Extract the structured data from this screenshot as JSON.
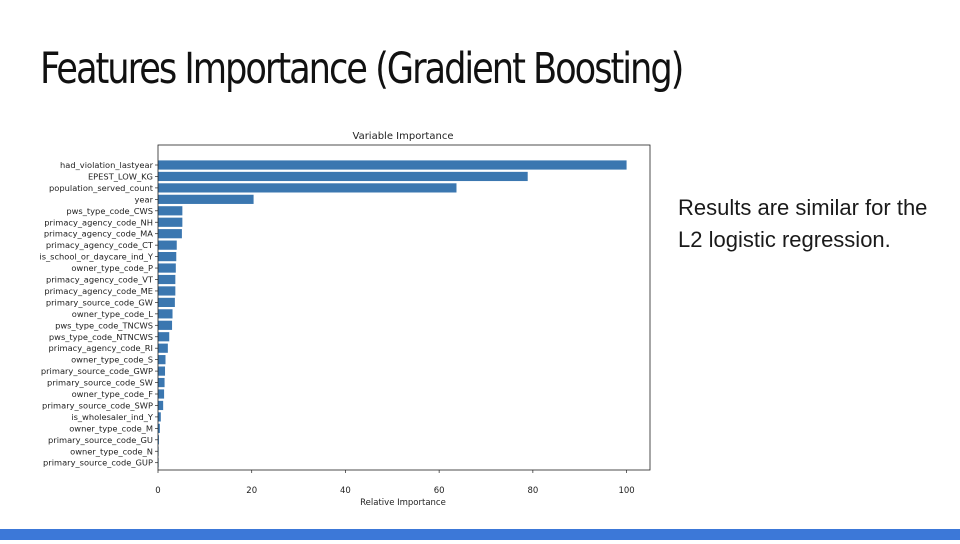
{
  "slide": {
    "title": "Features Importance (Gradient Boosting)",
    "note": "Results are similar for the L2 logistic regression.",
    "accent_color": "#3c78d8"
  },
  "chart_data": {
    "type": "bar",
    "orientation": "horizontal",
    "title": "Variable Importance",
    "xlabel": "Relative Importance",
    "ylabel": "",
    "xlim": [
      0,
      105
    ],
    "xticks": [
      0,
      20,
      40,
      60,
      80,
      100
    ],
    "grid": false,
    "bar_color": "#3b77b0",
    "categories": [
      "had_violation_lastyear",
      "EPEST_LOW_KG",
      "population_served_count",
      "year",
      "pws_type_code_CWS",
      "primacy_agency_code_NH",
      "primacy_agency_code_MA",
      "primacy_agency_code_CT",
      "is_school_or_daycare_ind_Y",
      "owner_type_code_P",
      "primacy_agency_code_VT",
      "primacy_agency_code_ME",
      "primary_source_code_GW",
      "owner_type_code_L",
      "pws_type_code_TNCWS",
      "pws_type_code_NTNCWS",
      "primacy_agency_code_RI",
      "owner_type_code_S",
      "primary_source_code_GWP",
      "primary_source_code_SW",
      "owner_type_code_F",
      "primary_source_code_SWP",
      "is_wholesaler_ind_Y",
      "owner_type_code_M",
      "primary_source_code_GU",
      "owner_type_code_N",
      "primary_source_code_GUP"
    ],
    "values": [
      100,
      78.9,
      63.7,
      20.4,
      5.2,
      5.2,
      5.1,
      4.0,
      3.9,
      3.8,
      3.7,
      3.7,
      3.6,
      3.1,
      3.0,
      2.4,
      2.1,
      1.6,
      1.5,
      1.4,
      1.3,
      1.1,
      0.6,
      0.4,
      0.2,
      0.1,
      0.05
    ]
  }
}
